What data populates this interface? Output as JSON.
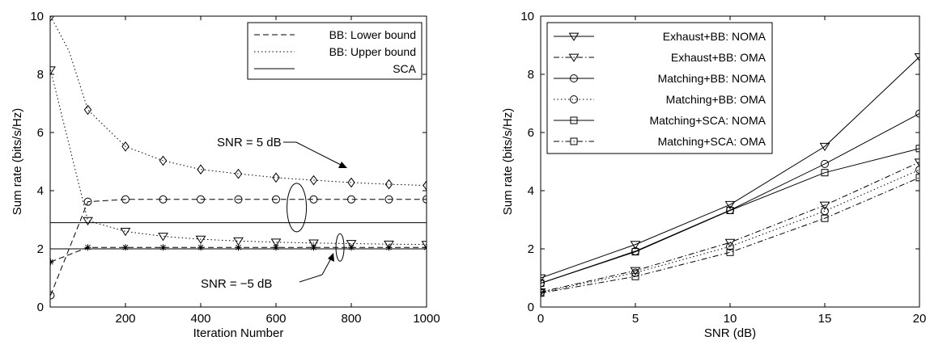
{
  "chart_data": [
    {
      "type": "line",
      "xlabel": "Iteration Number",
      "ylabel": "Sum rate (bits/s/Hz)",
      "xlim": [
        0,
        1000
      ],
      "ylim": [
        0,
        10
      ],
      "xticks": [
        200,
        400,
        600,
        800,
        1000
      ],
      "yticks": [
        0,
        2,
        4,
        6,
        8,
        10
      ],
      "legend_position": "top-right",
      "legend": [
        {
          "label": "BB: Lower bound",
          "style": "dashed"
        },
        {
          "label": "BB: Upper bound",
          "style": "dotted"
        },
        {
          "label": "SCA",
          "style": "solid"
        }
      ],
      "annotations": [
        {
          "text": "SNR = 5 dB",
          "target_x": 655,
          "target_y": 3.4
        },
        {
          "text": "SNR = −5 dB",
          "target_x": 770,
          "target_y": 2.0
        }
      ],
      "series": [
        {
          "style": "dashed",
          "marker": "circle",
          "group": "5 dB",
          "x": [
            1,
            100,
            200,
            300,
            400,
            500,
            600,
            700,
            800,
            900,
            1000
          ],
          "y": [
            0.4,
            3.62,
            3.7,
            3.7,
            3.7,
            3.7,
            3.7,
            3.7,
            3.7,
            3.7,
            3.7
          ]
        },
        {
          "style": "dotted",
          "marker": "diamond",
          "group": "5 dB",
          "x": [
            1,
            50,
            100,
            200,
            300,
            400,
            500,
            600,
            700,
            800,
            900,
            1000
          ],
          "y": [
            10.0,
            8.8,
            6.78,
            5.52,
            5.03,
            4.73,
            4.58,
            4.45,
            4.36,
            4.28,
            4.22,
            4.18
          ]
        },
        {
          "style": "solid",
          "marker": "none",
          "group": "5 dB",
          "x": [
            0,
            1000
          ],
          "y": [
            2.9,
            2.9
          ]
        },
        {
          "style": "dashed",
          "marker": "star",
          "group": "-5 dB",
          "x": [
            1,
            100,
            200,
            300,
            400,
            500,
            600,
            700,
            800,
            900,
            1000
          ],
          "y": [
            1.55,
            2.05,
            2.05,
            2.05,
            2.05,
            2.05,
            2.05,
            2.05,
            2.05,
            2.05,
            2.05
          ]
        },
        {
          "style": "dotted",
          "marker": "triangle-down",
          "group": "-5 dB",
          "x": [
            1,
            100,
            200,
            300,
            400,
            500,
            600,
            700,
            800,
            900,
            1000
          ],
          "y": [
            8.15,
            2.97,
            2.6,
            2.43,
            2.33,
            2.27,
            2.23,
            2.2,
            2.18,
            2.16,
            2.15
          ]
        },
        {
          "style": "solid",
          "marker": "none",
          "group": "-5 dB",
          "x": [
            0,
            1000
          ],
          "y": [
            2.0,
            2.0
          ]
        }
      ]
    },
    {
      "type": "line",
      "xlabel": "SNR  (dB)",
      "ylabel": "Sum rate (bits/s/Hz)",
      "xlim": [
        0,
        20
      ],
      "ylim": [
        0,
        10
      ],
      "xticks": [
        0,
        5,
        10,
        15,
        20
      ],
      "yticks": [
        0,
        2,
        4,
        6,
        8,
        10
      ],
      "legend_position": "top-left",
      "x": [
        0,
        5,
        10,
        15,
        20
      ],
      "series": [
        {
          "name": "Exhaust+BB: NOMA",
          "style": "solid",
          "marker": "triangle-down",
          "values": [
            1.0,
            2.15,
            3.52,
            5.52,
            8.6
          ]
        },
        {
          "name": "Exhaust+BB: OMA",
          "style": "dashdot",
          "marker": "triangle-down",
          "values": [
            0.52,
            1.25,
            2.22,
            3.5,
            4.98
          ]
        },
        {
          "name": "Matching+BB: NOMA",
          "style": "solid",
          "marker": "circle",
          "values": [
            0.82,
            1.92,
            3.33,
            4.92,
            6.65
          ]
        },
        {
          "name": "Matching+BB: OMA",
          "style": "dotted",
          "marker": "circle",
          "values": [
            0.5,
            1.18,
            2.08,
            3.3,
            4.72
          ]
        },
        {
          "name": "Matching+SCA: NOMA",
          "style": "solid",
          "marker": "square",
          "values": [
            0.82,
            1.9,
            3.32,
            4.62,
            5.45
          ]
        },
        {
          "name": "Matching+SCA: OMA",
          "style": "dashdot",
          "marker": "square",
          "values": [
            0.48,
            1.05,
            1.88,
            3.05,
            4.45
          ]
        }
      ]
    }
  ]
}
